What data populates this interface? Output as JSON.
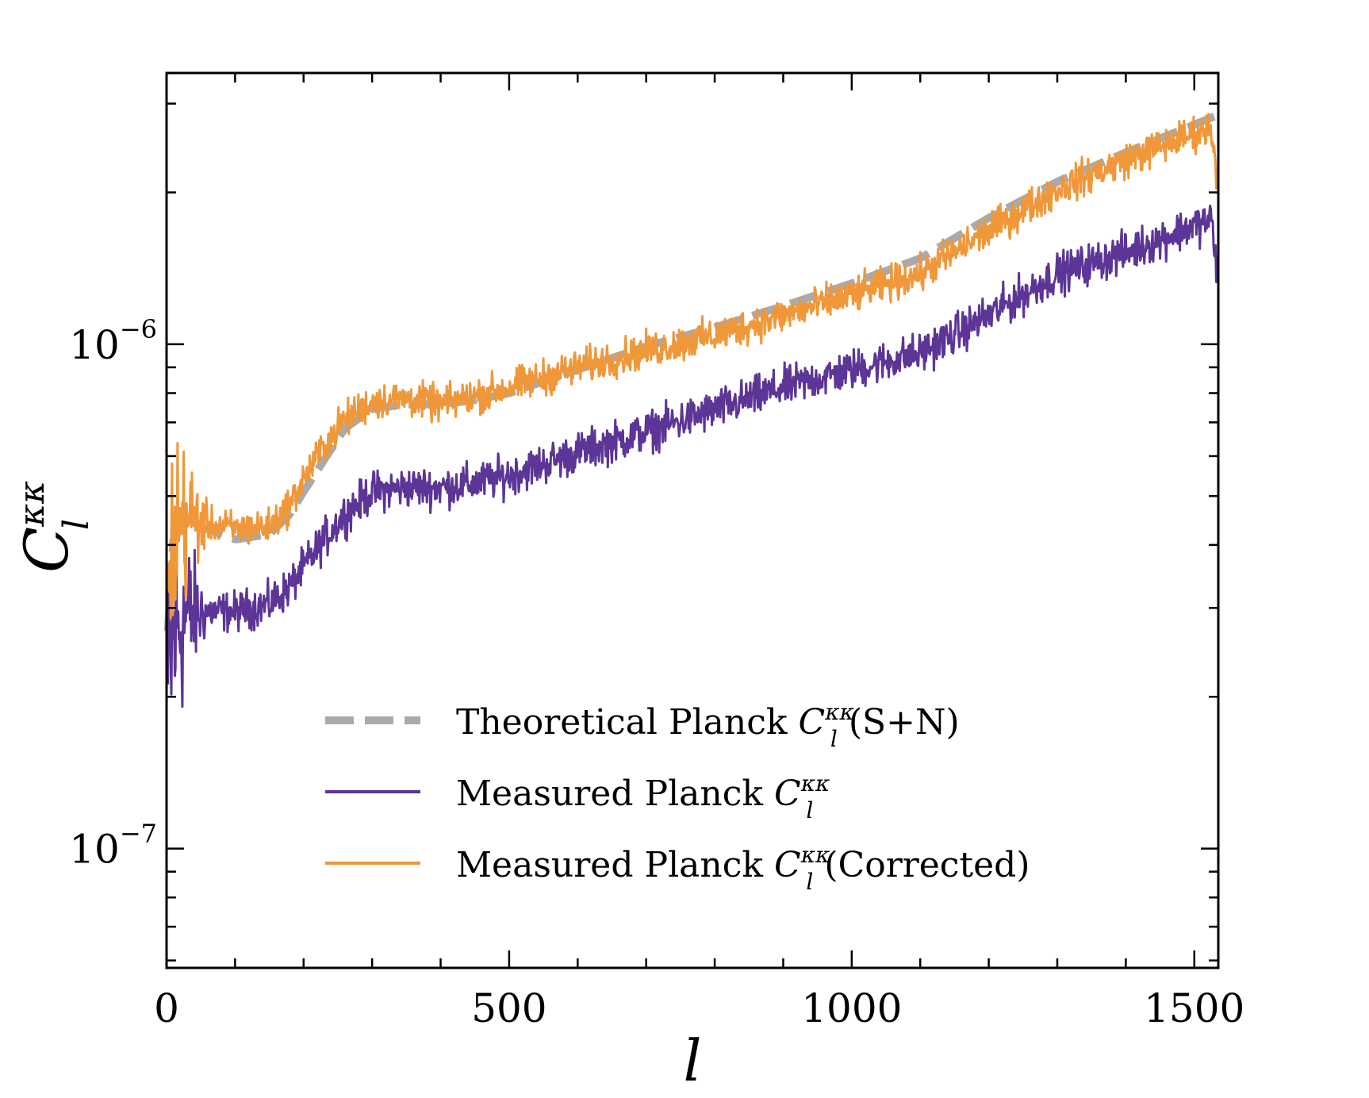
{
  "chart_data": {
    "type": "line",
    "title": "",
    "xlabel": "l",
    "ylabel": {
      "base": "C",
      "sub": "l",
      "sup": "κκ"
    },
    "xlim": [
      0,
      1535
    ],
    "ylim": [
      5.8e-08,
      3.45e-06
    ],
    "yscale": "log",
    "grid": false,
    "legend_position": "lower-right",
    "x_ticks": [
      {
        "value": 0,
        "label": "0"
      },
      {
        "value": 500,
        "label": "500"
      },
      {
        "value": 1000,
        "label": "1000"
      },
      {
        "value": 1500,
        "label": "1500"
      }
    ],
    "y_ticks": [
      {
        "value": 1e-07,
        "base": "10",
        "exp": "−7"
      },
      {
        "value": 1e-06,
        "base": "10",
        "exp": "−6"
      }
    ],
    "colors": {
      "theory": "#aaaaaa",
      "measured": "#5c3596",
      "corrected": "#f0973a"
    },
    "series": [
      {
        "name": "theory",
        "legend": {
          "prefix": "Theoretical Planck ",
          "math": "C",
          "sub": "l",
          "sup": "κκ",
          "suffix": " (S+N)"
        },
        "style": "dashed",
        "x": [
          2,
          10,
          20,
          30,
          60,
          100,
          150,
          180,
          200,
          230,
          260,
          300,
          350,
          400,
          450,
          500,
          600,
          700,
          800,
          900,
          1000,
          1100,
          1200,
          1300,
          1400,
          1535
        ],
        "values": [
          2.7e-07,
          4.1e-07,
          4.3e-07,
          4.35e-07,
          4.3e-07,
          4.1e-07,
          4.2e-07,
          4.6e-07,
          5.1e-07,
          5.9e-07,
          6.8e-07,
          7.45e-07,
          7.6e-07,
          7.6e-07,
          7.75e-07,
          8e-07,
          8.9e-07,
          9.9e-07,
          1.08e-06,
          1.19e-06,
          1.32e-06,
          1.48e-06,
          1.78e-06,
          2.1e-06,
          2.4e-06,
          2.85e-06
        ]
      },
      {
        "name": "measured",
        "legend": {
          "prefix": "Measured Planck ",
          "math": "C",
          "sub": "l",
          "sup": "κκ",
          "suffix": ""
        },
        "style": "noisy",
        "x": [
          2,
          10,
          20,
          30,
          60,
          100,
          150,
          180,
          200,
          230,
          260,
          300,
          350,
          400,
          450,
          500,
          600,
          700,
          800,
          900,
          1000,
          1100,
          1200,
          1300,
          1400,
          1500,
          1525,
          1535
        ],
        "values": [
          2e-07,
          2.6e-07,
          2.8e-07,
          2.9e-07,
          2.95e-07,
          2.95e-07,
          3.05e-07,
          3.3e-07,
          3.6e-07,
          4.1e-07,
          4.6e-07,
          5.1e-07,
          5.2e-07,
          5.2e-07,
          5.3e-07,
          5.5e-07,
          6.1e-07,
          6.7e-07,
          7.4e-07,
          8.2e-07,
          8.9e-07,
          9.6e-07,
          1.14e-06,
          1.38e-06,
          1.52e-06,
          1.72e-06,
          1.76e-06,
          1.35e-06
        ],
        "noise": 0.045
      },
      {
        "name": "corrected",
        "legend": {
          "prefix": "Measured Planck ",
          "math": "C",
          "sub": "l",
          "sup": "κκ",
          "suffix": " (Corrected)"
        },
        "style": "noisy",
        "x": [
          2,
          10,
          20,
          30,
          60,
          100,
          150,
          180,
          200,
          230,
          260,
          300,
          350,
          400,
          450,
          500,
          600,
          700,
          800,
          900,
          1000,
          1100,
          1200,
          1300,
          1400,
          1500,
          1525,
          1535
        ],
        "values": [
          2.9e-07,
          4.2e-07,
          4.4e-07,
          4.5e-07,
          4.4e-07,
          4.3e-07,
          4.35e-07,
          4.8e-07,
          5.4e-07,
          6.3e-07,
          7.1e-07,
          7.7e-07,
          7.8e-07,
          7.6e-07,
          7.9e-07,
          8.2e-07,
          9e-07,
          9.7e-07,
          1.04e-06,
          1.14e-06,
          1.25e-06,
          1.38e-06,
          1.68e-06,
          2.03e-06,
          2.32e-06,
          2.62e-06,
          2.68e-06,
          2.05e-06
        ],
        "noise": 0.04
      }
    ]
  }
}
